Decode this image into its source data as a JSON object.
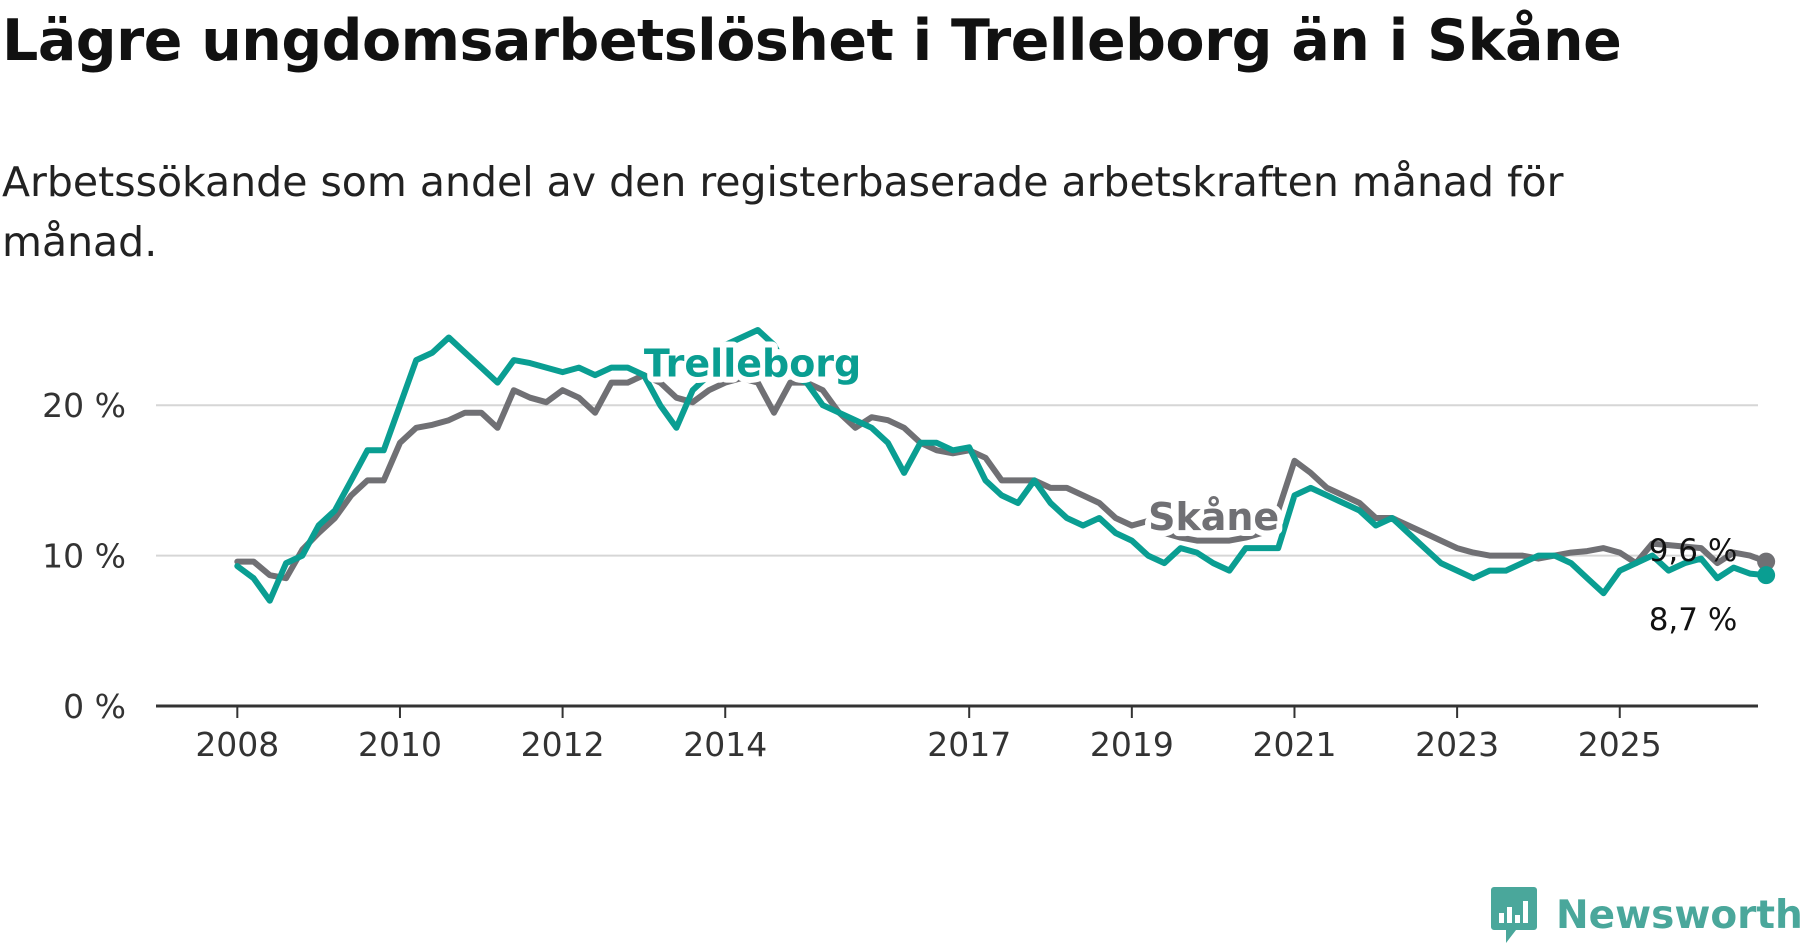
{
  "title": "Lägre ungdomsarbetslöshet i Trelleborg än i Skåne",
  "subtitle": "Arbetssökande som andel av den registerbaserade arbetskraften månad för månad.",
  "brand": "Newsworthy",
  "colors": {
    "trelleborg": "#0a9e92",
    "skane": "#707074",
    "grid": "#d6d6d6",
    "axis": "#333333",
    "brand": "#4aa79b"
  },
  "chart_data": {
    "type": "line",
    "title": "Lägre ungdomsarbetslöshet i Trelleborg än i Skåne",
    "subtitle": "Arbetssökande som andel av den registerbaserade arbetskraften månad för månad.",
    "xlabel": "",
    "ylabel": "",
    "ylim": [
      0,
      25
    ],
    "xlim": [
      2007.0,
      2026.7
    ],
    "y_ticks": [
      0,
      10,
      20
    ],
    "y_tick_labels": [
      "0 %",
      "10 %",
      "20 %"
    ],
    "x_ticks": [
      2008,
      2010,
      2012,
      2014,
      2017,
      2019,
      2021,
      2023,
      2025
    ],
    "grid": true,
    "series": [
      {
        "name": "Skåne",
        "label": "Skåne",
        "end_label": "9,6 %",
        "points": [
          [
            2008.0,
            9.6
          ],
          [
            2008.2,
            9.6
          ],
          [
            2008.4,
            8.7
          ],
          [
            2008.6,
            8.5
          ],
          [
            2008.8,
            10.4
          ],
          [
            2009.0,
            11.5
          ],
          [
            2009.2,
            12.5
          ],
          [
            2009.4,
            14.0
          ],
          [
            2009.6,
            15.0
          ],
          [
            2009.8,
            15.0
          ],
          [
            2010.0,
            17.5
          ],
          [
            2010.2,
            18.5
          ],
          [
            2010.4,
            18.7
          ],
          [
            2010.6,
            19.0
          ],
          [
            2010.8,
            19.5
          ],
          [
            2011.0,
            19.5
          ],
          [
            2011.2,
            18.5
          ],
          [
            2011.4,
            21.0
          ],
          [
            2011.6,
            20.5
          ],
          [
            2011.8,
            20.2
          ],
          [
            2012.0,
            21.0
          ],
          [
            2012.2,
            20.5
          ],
          [
            2012.4,
            19.5
          ],
          [
            2012.6,
            21.5
          ],
          [
            2012.8,
            21.5
          ],
          [
            2013.0,
            22.0
          ],
          [
            2013.2,
            21.5
          ],
          [
            2013.4,
            20.5
          ],
          [
            2013.6,
            20.2
          ],
          [
            2013.8,
            21.0
          ],
          [
            2014.0,
            21.5
          ],
          [
            2014.2,
            21.8
          ],
          [
            2014.4,
            21.5
          ],
          [
            2014.6,
            19.5
          ],
          [
            2014.8,
            21.5
          ],
          [
            2015.0,
            21.5
          ],
          [
            2015.2,
            21.0
          ],
          [
            2015.4,
            19.5
          ],
          [
            2015.6,
            18.5
          ],
          [
            2015.8,
            19.2
          ],
          [
            2016.0,
            19.0
          ],
          [
            2016.2,
            18.5
          ],
          [
            2016.4,
            17.5
          ],
          [
            2016.6,
            17.0
          ],
          [
            2016.8,
            16.8
          ],
          [
            2017.0,
            17.0
          ],
          [
            2017.2,
            16.5
          ],
          [
            2017.4,
            15.0
          ],
          [
            2017.6,
            15.0
          ],
          [
            2017.8,
            15.0
          ],
          [
            2018.0,
            14.5
          ],
          [
            2018.2,
            14.5
          ],
          [
            2018.4,
            14.0
          ],
          [
            2018.6,
            13.5
          ],
          [
            2018.8,
            12.5
          ],
          [
            2019.0,
            12.0
          ],
          [
            2019.2,
            12.3
          ],
          [
            2019.4,
            11.5
          ],
          [
            2019.6,
            11.2
          ],
          [
            2019.8,
            11.0
          ],
          [
            2020.0,
            11.0
          ],
          [
            2020.2,
            11.0
          ],
          [
            2020.4,
            11.2
          ],
          [
            2020.6,
            11.5
          ],
          [
            2020.8,
            13.0
          ],
          [
            2021.0,
            16.3
          ],
          [
            2021.2,
            15.5
          ],
          [
            2021.4,
            14.5
          ],
          [
            2021.6,
            14.0
          ],
          [
            2021.8,
            13.5
          ],
          [
            2022.0,
            12.5
          ],
          [
            2022.2,
            12.5
          ],
          [
            2022.4,
            12.0
          ],
          [
            2022.6,
            11.5
          ],
          [
            2022.8,
            11.0
          ],
          [
            2023.0,
            10.5
          ],
          [
            2023.2,
            10.2
          ],
          [
            2023.4,
            10.0
          ],
          [
            2023.6,
            10.0
          ],
          [
            2023.8,
            10.0
          ],
          [
            2024.0,
            9.8
          ],
          [
            2024.2,
            10.0
          ],
          [
            2024.4,
            10.2
          ],
          [
            2024.6,
            10.3
          ],
          [
            2024.8,
            10.5
          ],
          [
            2025.0,
            10.2
          ],
          [
            2025.2,
            9.5
          ],
          [
            2025.4,
            10.8
          ],
          [
            2025.6,
            10.7
          ],
          [
            2025.8,
            10.6
          ],
          [
            2026.0,
            10.5
          ],
          [
            2026.2,
            9.5
          ],
          [
            2026.4,
            10.2
          ],
          [
            2026.6,
            10.0
          ],
          [
            2026.8,
            9.6
          ]
        ]
      },
      {
        "name": "Trelleborg",
        "label": "Trelleborg",
        "end_label": "8,7 %",
        "points": [
          [
            2008.0,
            9.3
          ],
          [
            2008.2,
            8.5
          ],
          [
            2008.4,
            7.0
          ],
          [
            2008.6,
            9.5
          ],
          [
            2008.8,
            10.0
          ],
          [
            2009.0,
            12.0
          ],
          [
            2009.2,
            13.0
          ],
          [
            2009.4,
            15.0
          ],
          [
            2009.6,
            17.0
          ],
          [
            2009.8,
            17.0
          ],
          [
            2010.0,
            20.0
          ],
          [
            2010.2,
            23.0
          ],
          [
            2010.4,
            23.5
          ],
          [
            2010.6,
            24.5
          ],
          [
            2010.8,
            23.5
          ],
          [
            2011.0,
            22.5
          ],
          [
            2011.2,
            21.5
          ],
          [
            2011.4,
            23.0
          ],
          [
            2011.6,
            22.8
          ],
          [
            2011.8,
            22.5
          ],
          [
            2012.0,
            22.2
          ],
          [
            2012.2,
            22.5
          ],
          [
            2012.4,
            22.0
          ],
          [
            2012.6,
            22.5
          ],
          [
            2012.8,
            22.5
          ],
          [
            2013.0,
            22.0
          ],
          [
            2013.2,
            20.0
          ],
          [
            2013.4,
            18.5
          ],
          [
            2013.6,
            21.0
          ],
          [
            2013.8,
            22.0
          ],
          [
            2014.0,
            24.0
          ],
          [
            2014.2,
            24.5
          ],
          [
            2014.4,
            25.0
          ],
          [
            2014.6,
            24.0
          ],
          [
            2014.8,
            22.0
          ],
          [
            2015.0,
            21.5
          ],
          [
            2015.2,
            20.0
          ],
          [
            2015.4,
            19.5
          ],
          [
            2015.6,
            19.0
          ],
          [
            2015.8,
            18.5
          ],
          [
            2016.0,
            17.5
          ],
          [
            2016.2,
            15.5
          ],
          [
            2016.4,
            17.5
          ],
          [
            2016.6,
            17.5
          ],
          [
            2016.8,
            17.0
          ],
          [
            2017.0,
            17.2
          ],
          [
            2017.2,
            15.0
          ],
          [
            2017.4,
            14.0
          ],
          [
            2017.6,
            13.5
          ],
          [
            2017.8,
            15.0
          ],
          [
            2018.0,
            13.5
          ],
          [
            2018.2,
            12.5
          ],
          [
            2018.4,
            12.0
          ],
          [
            2018.6,
            12.5
          ],
          [
            2018.8,
            11.5
          ],
          [
            2019.0,
            11.0
          ],
          [
            2019.2,
            10.0
          ],
          [
            2019.4,
            9.5
          ],
          [
            2019.6,
            10.5
          ],
          [
            2019.8,
            10.2
          ],
          [
            2020.0,
            9.5
          ],
          [
            2020.2,
            9.0
          ],
          [
            2020.4,
            10.5
          ],
          [
            2020.6,
            10.5
          ],
          [
            2020.8,
            10.5
          ],
          [
            2021.0,
            14.0
          ],
          [
            2021.2,
            14.5
          ],
          [
            2021.4,
            14.0
          ],
          [
            2021.6,
            13.5
          ],
          [
            2021.8,
            13.0
          ],
          [
            2022.0,
            12.0
          ],
          [
            2022.2,
            12.5
          ],
          [
            2022.4,
            11.5
          ],
          [
            2022.6,
            10.5
          ],
          [
            2022.8,
            9.5
          ],
          [
            2023.0,
            9.0
          ],
          [
            2023.2,
            8.5
          ],
          [
            2023.4,
            9.0
          ],
          [
            2023.6,
            9.0
          ],
          [
            2023.8,
            9.5
          ],
          [
            2024.0,
            10.0
          ],
          [
            2024.2,
            10.0
          ],
          [
            2024.4,
            9.5
          ],
          [
            2024.6,
            8.5
          ],
          [
            2024.8,
            7.5
          ],
          [
            2025.0,
            9.0
          ],
          [
            2025.2,
            9.5
          ],
          [
            2025.4,
            10.0
          ],
          [
            2025.6,
            9.0
          ],
          [
            2025.8,
            9.5
          ],
          [
            2026.0,
            9.8
          ],
          [
            2026.2,
            8.5
          ],
          [
            2026.4,
            9.2
          ],
          [
            2026.6,
            8.8
          ],
          [
            2026.8,
            8.7
          ]
        ]
      }
    ]
  }
}
